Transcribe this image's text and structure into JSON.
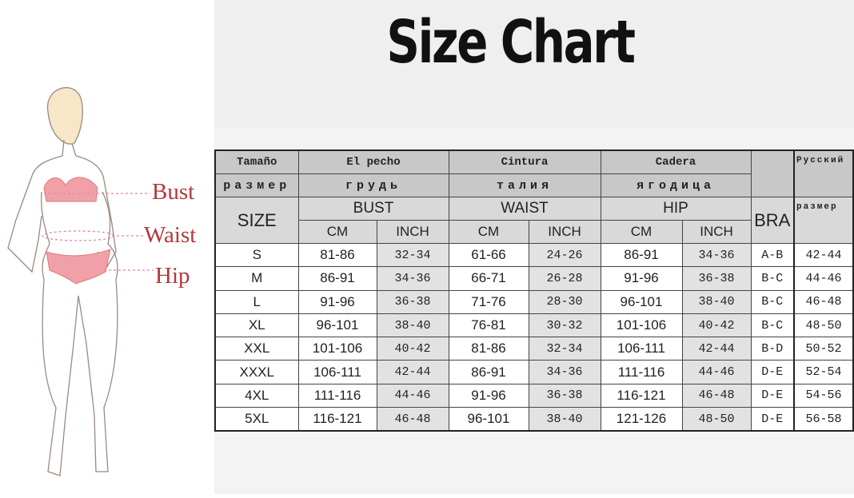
{
  "title": "Size Chart",
  "figure": {
    "labels": [
      "Bust",
      "Waist",
      "Hip"
    ],
    "label_color": "#b4373c",
    "garment_color": "#f2a0a8"
  },
  "table": {
    "header_row1": [
      "Tamaño",
      "El pecho",
      "Cintura",
      "Cadera",
      "Русский"
    ],
    "header_row2": [
      "размер",
      "грудь",
      "талия",
      "ягодица"
    ],
    "header_row3": [
      "SIZE",
      "BUST",
      "WAIST",
      "HIP",
      "BRA",
      "размер"
    ],
    "header_row4": [
      "CM",
      "INCH",
      "CM",
      "INCH",
      "CM",
      "INCH"
    ],
    "rows": [
      [
        "S",
        "81-86",
        "32-34",
        "61-66",
        "24-26",
        "86-91",
        "34-36",
        "A-B",
        "42-44"
      ],
      [
        "M",
        "86-91",
        "34-36",
        "66-71",
        "26-28",
        "91-96",
        "36-38",
        "B-C",
        "44-46"
      ],
      [
        "L",
        "91-96",
        "36-38",
        "71-76",
        "28-30",
        "96-101",
        "38-40",
        "B-C",
        "46-48"
      ],
      [
        "XL",
        "96-101",
        "38-40",
        "76-81",
        "30-32",
        "101-106",
        "40-42",
        "B-C",
        "48-50"
      ],
      [
        "XXL",
        "101-106",
        "40-42",
        "81-86",
        "32-34",
        "106-111",
        "42-44",
        "B-D",
        "50-52"
      ],
      [
        "XXXL",
        "106-111",
        "42-44",
        "86-91",
        "34-36",
        "111-116",
        "44-46",
        "D-E",
        "52-54"
      ],
      [
        "4XL",
        "111-116",
        "44-46",
        "91-96",
        "36-38",
        "116-121",
        "46-48",
        "D-E",
        "54-56"
      ],
      [
        "5XL",
        "116-121",
        "46-48",
        "96-101",
        "38-40",
        "121-126",
        "48-50",
        "D-E",
        "56-58"
      ]
    ]
  }
}
